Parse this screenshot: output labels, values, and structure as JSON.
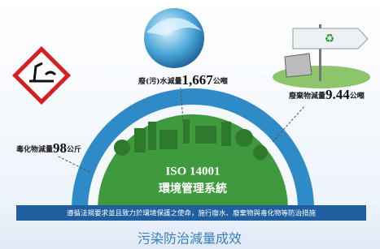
{
  "items": [
    {
      "label": "毒化物減量",
      "value": "98",
      "unit": "公斤"
    },
    {
      "label": "廢(污)水減量",
      "value": "1,667",
      "unit": "公噸"
    },
    {
      "label": "廢棄物減量",
      "value": "9.44",
      "unit": "公噸"
    }
  ],
  "center": {
    "title": "ISO 14001",
    "subtitle": "環境管理系統"
  },
  "banner": "遵循法規要求並且致力於環境保護之使命，施行廢水、廢棄物與毒化物等防治措施",
  "caption": "污染防治減量成效"
}
